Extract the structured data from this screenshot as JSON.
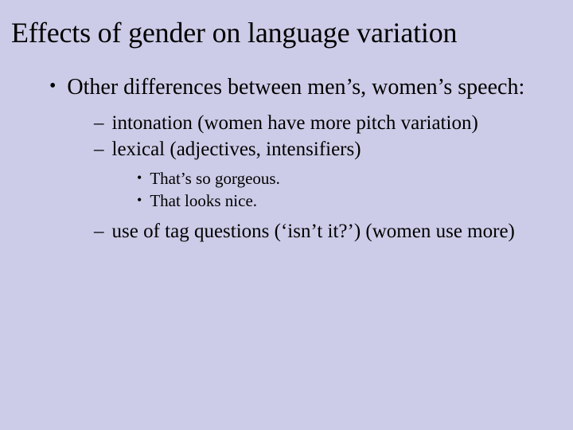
{
  "slide": {
    "background_color": "#cccce8",
    "text_color": "#000000",
    "font_family": "Times New Roman",
    "title": "Effects of gender on language variation",
    "title_fontsize": 36,
    "bullets": {
      "level1": [
        {
          "text": "Other differences between men’s, women’s speech:",
          "marker": "•",
          "fontsize": 28
        }
      ],
      "level2": [
        {
          "text": "intonation (women have more pitch variation)",
          "marker": "–",
          "fontsize": 25
        },
        {
          "text": "lexical (adjectives, intensifiers)",
          "marker": "–",
          "fontsize": 25
        },
        {
          "text": "use of tag questions (‘isn’t it?’) (women use more)",
          "marker": "–",
          "fontsize": 25
        }
      ],
      "level3": [
        {
          "text": "That’s so gorgeous.",
          "marker": "•",
          "fontsize": 21
        },
        {
          "text": "That looks nice.",
          "marker": "•",
          "fontsize": 21
        }
      ]
    }
  }
}
